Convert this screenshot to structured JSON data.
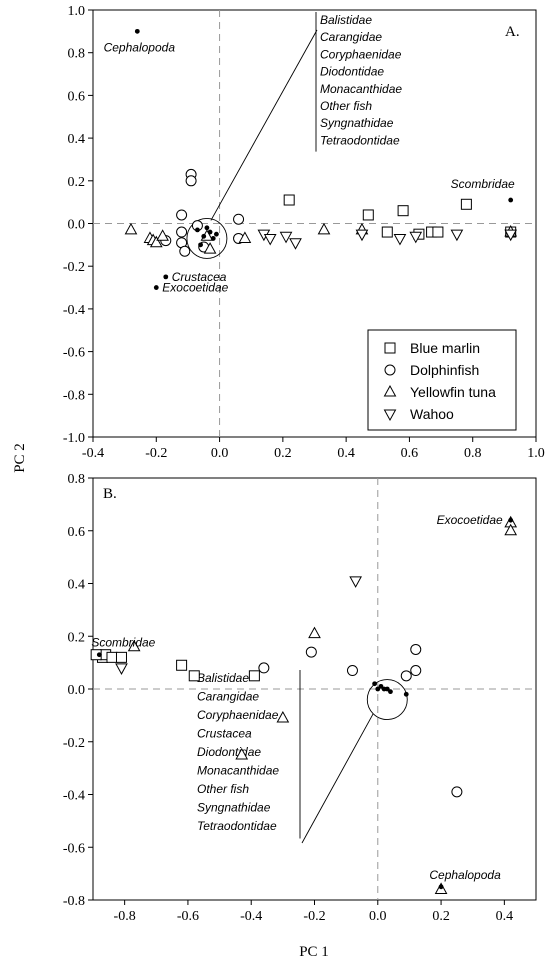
{
  "chart_data": [
    {
      "type": "scatter",
      "panel_label": "A.",
      "xlabel": "",
      "ylabel": "PC 2",
      "xlim": [
        -0.4,
        1.0
      ],
      "ylim": [
        -1.0,
        1.0
      ],
      "xticks": [
        "-0.4",
        "-0.2",
        "0.0",
        "0.2",
        "0.4",
        "0.6",
        "0.8",
        "1.0"
      ],
      "yticks": [
        "1.0",
        "0.8",
        "0.6",
        "0.4",
        "0.2",
        "0.0",
        "-0.2",
        "-0.4",
        "-0.6",
        "-0.8",
        "-1.0"
      ],
      "legend": {
        "placement": "bottom-right",
        "entries": [
          {
            "name": "Blue marlin",
            "marker": "square"
          },
          {
            "name": "Dolphinfish",
            "marker": "circle"
          },
          {
            "name": "Yellowfin tuna",
            "marker": "triangle-up"
          },
          {
            "name": "Wahoo",
            "marker": "triangle-down"
          }
        ]
      },
      "series": [
        {
          "name": "Blue marlin",
          "marker": "square",
          "points": [
            [
              0.22,
              0.11
            ],
            [
              0.47,
              0.04
            ],
            [
              0.53,
              -0.04
            ],
            [
              0.58,
              0.06
            ],
            [
              0.63,
              -0.05
            ],
            [
              0.67,
              -0.04
            ],
            [
              0.69,
              -0.04
            ],
            [
              0.78,
              0.09
            ],
            [
              0.92,
              -0.04
            ]
          ]
        },
        {
          "name": "Dolphinfish",
          "marker": "circle",
          "points": [
            [
              -0.09,
              0.23
            ],
            [
              -0.09,
              0.2
            ],
            [
              -0.12,
              0.04
            ],
            [
              -0.12,
              -0.04
            ],
            [
              -0.12,
              -0.09
            ],
            [
              -0.11,
              -0.13
            ],
            [
              -0.07,
              -0.01
            ],
            [
              -0.05,
              -0.11
            ],
            [
              0.06,
              0.02
            ],
            [
              0.06,
              -0.07
            ],
            [
              -0.17,
              -0.08
            ]
          ]
        },
        {
          "name": "Yellowfin tuna",
          "marker": "triangle-up",
          "points": [
            [
              -0.28,
              -0.03
            ],
            [
              -0.22,
              -0.07
            ],
            [
              -0.21,
              -0.08
            ],
            [
              -0.2,
              -0.09
            ],
            [
              -0.18,
              -0.06
            ],
            [
              -0.04,
              -0.06
            ],
            [
              -0.03,
              -0.12
            ],
            [
              0.08,
              -0.07
            ],
            [
              0.33,
              -0.03
            ],
            [
              0.45,
              -0.03
            ],
            [
              0.92,
              -0.04
            ]
          ]
        },
        {
          "name": "Wahoo",
          "marker": "triangle-down",
          "points": [
            [
              0.14,
              -0.05
            ],
            [
              0.16,
              -0.07
            ],
            [
              0.21,
              -0.06
            ],
            [
              0.24,
              -0.09
            ],
            [
              0.45,
              -0.05
            ],
            [
              0.57,
              -0.07
            ],
            [
              0.62,
              -0.06
            ],
            [
              0.75,
              -0.05
            ],
            [
              0.92,
              -0.05
            ]
          ]
        },
        {
          "name": "prey",
          "marker": "dot",
          "points": [
            [
              -0.26,
              0.9
            ],
            [
              -0.17,
              -0.25
            ],
            [
              -0.2,
              -0.3
            ],
            [
              0.92,
              0.11
            ],
            [
              -0.07,
              -0.03
            ],
            [
              -0.06,
              -0.1
            ],
            [
              -0.05,
              -0.06
            ],
            [
              -0.03,
              -0.04
            ],
            [
              -0.02,
              -0.07
            ],
            [
              -0.04,
              -0.02
            ],
            [
              -0.01,
              -0.05
            ]
          ]
        }
      ],
      "annotations": [
        {
          "text": "Cephalopoda",
          "x": -0.26,
          "y": 0.9,
          "anchor": "below"
        },
        {
          "text": "Crustacea",
          "x": -0.17,
          "y": -0.25,
          "anchor": "right"
        },
        {
          "text": "Exocoetidae",
          "x": -0.2,
          "y": -0.3,
          "anchor": "right"
        },
        {
          "text": "Scombridae",
          "x": 0.92,
          "y": 0.11,
          "anchor": "above-left"
        }
      ],
      "group_label": {
        "lines": [
          "Balistidae",
          "Carangidae",
          "Coryphaenidae",
          "Diodontidae",
          "Monacanthidae",
          "Other fish",
          "Syngnathidae",
          "Tetraodontidae"
        ],
        "circle_center": [
          -0.04,
          -0.07
        ]
      }
    },
    {
      "type": "scatter",
      "panel_label": "B.",
      "xlabel": "PC 1",
      "ylabel": "",
      "xlim": [
        -0.9,
        0.5
      ],
      "ylim": [
        -0.8,
        0.8
      ],
      "xticks": [
        "-0.8",
        "-0.6",
        "-0.4",
        "-0.2",
        "0.0",
        "0.2",
        "0.4"
      ],
      "yticks": [
        "0.8",
        "0.6",
        "0.4",
        "0.2",
        "0.0",
        "-0.2",
        "-0.4",
        "-0.6",
        "-0.8"
      ],
      "series": [
        {
          "name": "Blue marlin",
          "marker": "square",
          "points": [
            [
              -0.87,
              0.12
            ],
            [
              -0.86,
              0.13
            ],
            [
              -0.84,
              0.12
            ],
            [
              -0.81,
              0.12
            ],
            [
              -0.62,
              0.09
            ],
            [
              -0.58,
              0.05
            ],
            [
              -0.39,
              0.05
            ],
            [
              -0.89,
              0.13
            ]
          ]
        },
        {
          "name": "Dolphinfish",
          "marker": "circle",
          "points": [
            [
              -0.36,
              0.08
            ],
            [
              -0.21,
              0.14
            ],
            [
              -0.08,
              0.07
            ],
            [
              0.09,
              0.05
            ],
            [
              0.12,
              0.15
            ],
            [
              0.12,
              0.07
            ],
            [
              0.25,
              -0.39
            ]
          ]
        },
        {
          "name": "Yellowfin tuna",
          "marker": "triangle-up",
          "points": [
            [
              -0.77,
              0.16
            ],
            [
              -0.43,
              -0.25
            ],
            [
              -0.3,
              -0.11
            ],
            [
              -0.2,
              0.21
            ],
            [
              0.42,
              0.63
            ],
            [
              0.42,
              0.6
            ],
            [
              0.2,
              -0.76
            ]
          ]
        },
        {
          "name": "Wahoo",
          "marker": "triangle-down",
          "points": [
            [
              -0.81,
              0.08
            ],
            [
              -0.07,
              0.41
            ]
          ]
        },
        {
          "name": "prey",
          "marker": "dot",
          "points": [
            [
              -0.88,
              0.13
            ],
            [
              0.42,
              0.64
            ],
            [
              0.2,
              -0.75
            ],
            [
              -0.01,
              0.02
            ],
            [
              0.01,
              0.01
            ],
            [
              0.02,
              0.0
            ],
            [
              0.03,
              0.0
            ],
            [
              0.04,
              -0.01
            ],
            [
              0.09,
              -0.02
            ],
            [
              0.0,
              0.0
            ]
          ]
        }
      ],
      "annotations": [
        {
          "text": "Scombridae",
          "x": -0.88,
          "y": 0.13,
          "anchor": "above"
        },
        {
          "text": "Exocoetidae",
          "x": 0.42,
          "y": 0.64,
          "anchor": "left"
        },
        {
          "text": "Cephalopoda",
          "x": 0.2,
          "y": -0.75,
          "anchor": "above"
        }
      ],
      "group_label": {
        "lines": [
          "Balistidae",
          "Carangidae",
          "Coryphaenidae",
          "Crustacea",
          "Diodontidae",
          "Monacanthidae",
          "Other fish",
          "Syngnathidae",
          "Tetraodontidae"
        ],
        "circle_center": [
          0.03,
          -0.04
        ]
      }
    }
  ]
}
